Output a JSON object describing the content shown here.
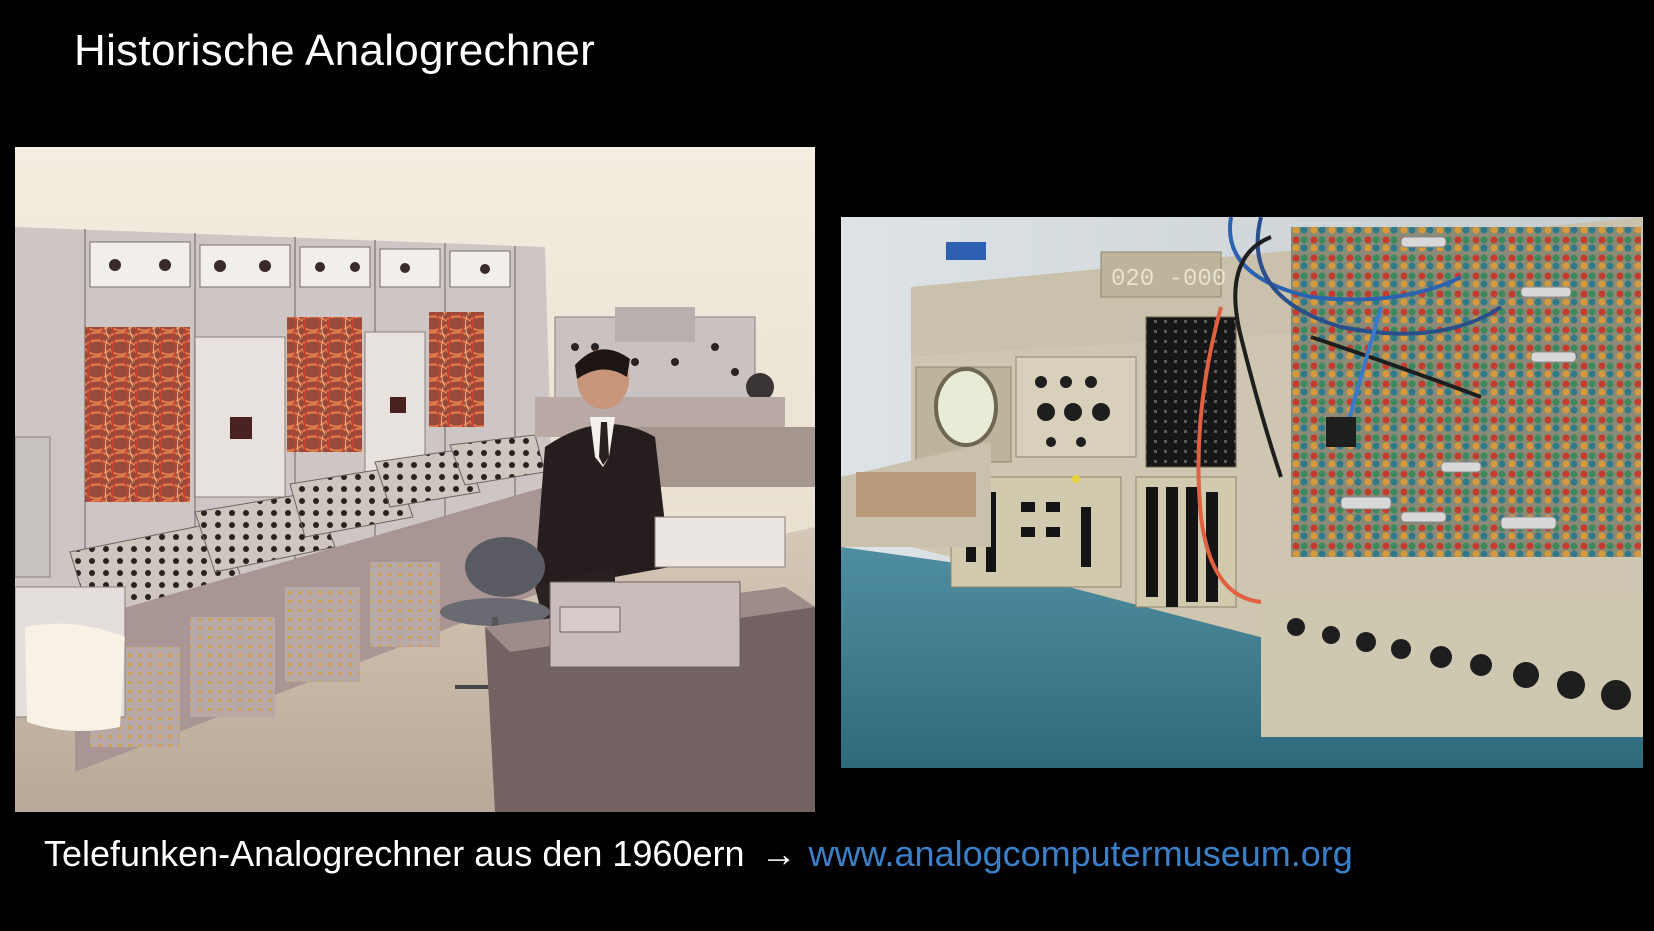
{
  "slide": {
    "title": "Historische Analogrechner"
  },
  "caption": {
    "text": "Telefunken-Analogrechner aus den 1960ern",
    "arrow": "→",
    "link": "www.analogcomputermuseum.org",
    "link_color": "#3a80c9"
  },
  "images": {
    "left": {
      "icon": "vintage-photo-analog-computer-room"
    },
    "right": {
      "icon": "photo-analog-computer-patch-panel"
    }
  }
}
